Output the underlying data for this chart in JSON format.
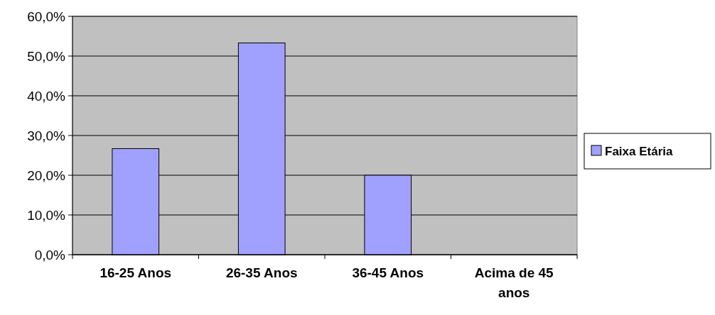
{
  "chart_data": {
    "type": "bar",
    "categories": [
      "16-25 Anos",
      "26-35 Anos",
      "36-45 Anos",
      "Acima de 45 anos"
    ],
    "series": [
      {
        "name": "Faixa Etária",
        "color": "#a0a0ff",
        "values": [
          26.7,
          53.3,
          20.0,
          0
        ]
      }
    ],
    "ylim": [
      0,
      60
    ],
    "yticks": [
      {
        "value": 0,
        "label": "0,0%"
      },
      {
        "value": 10,
        "label": "10,0%"
      },
      {
        "value": 20,
        "label": "20,0%"
      },
      {
        "value": 30,
        "label": "30,0%"
      },
      {
        "value": 40,
        "label": "40,0%"
      },
      {
        "value": 50,
        "label": "50,0%"
      },
      {
        "value": 60,
        "label": "60,0%"
      }
    ],
    "grid": "y",
    "legend": "right"
  }
}
